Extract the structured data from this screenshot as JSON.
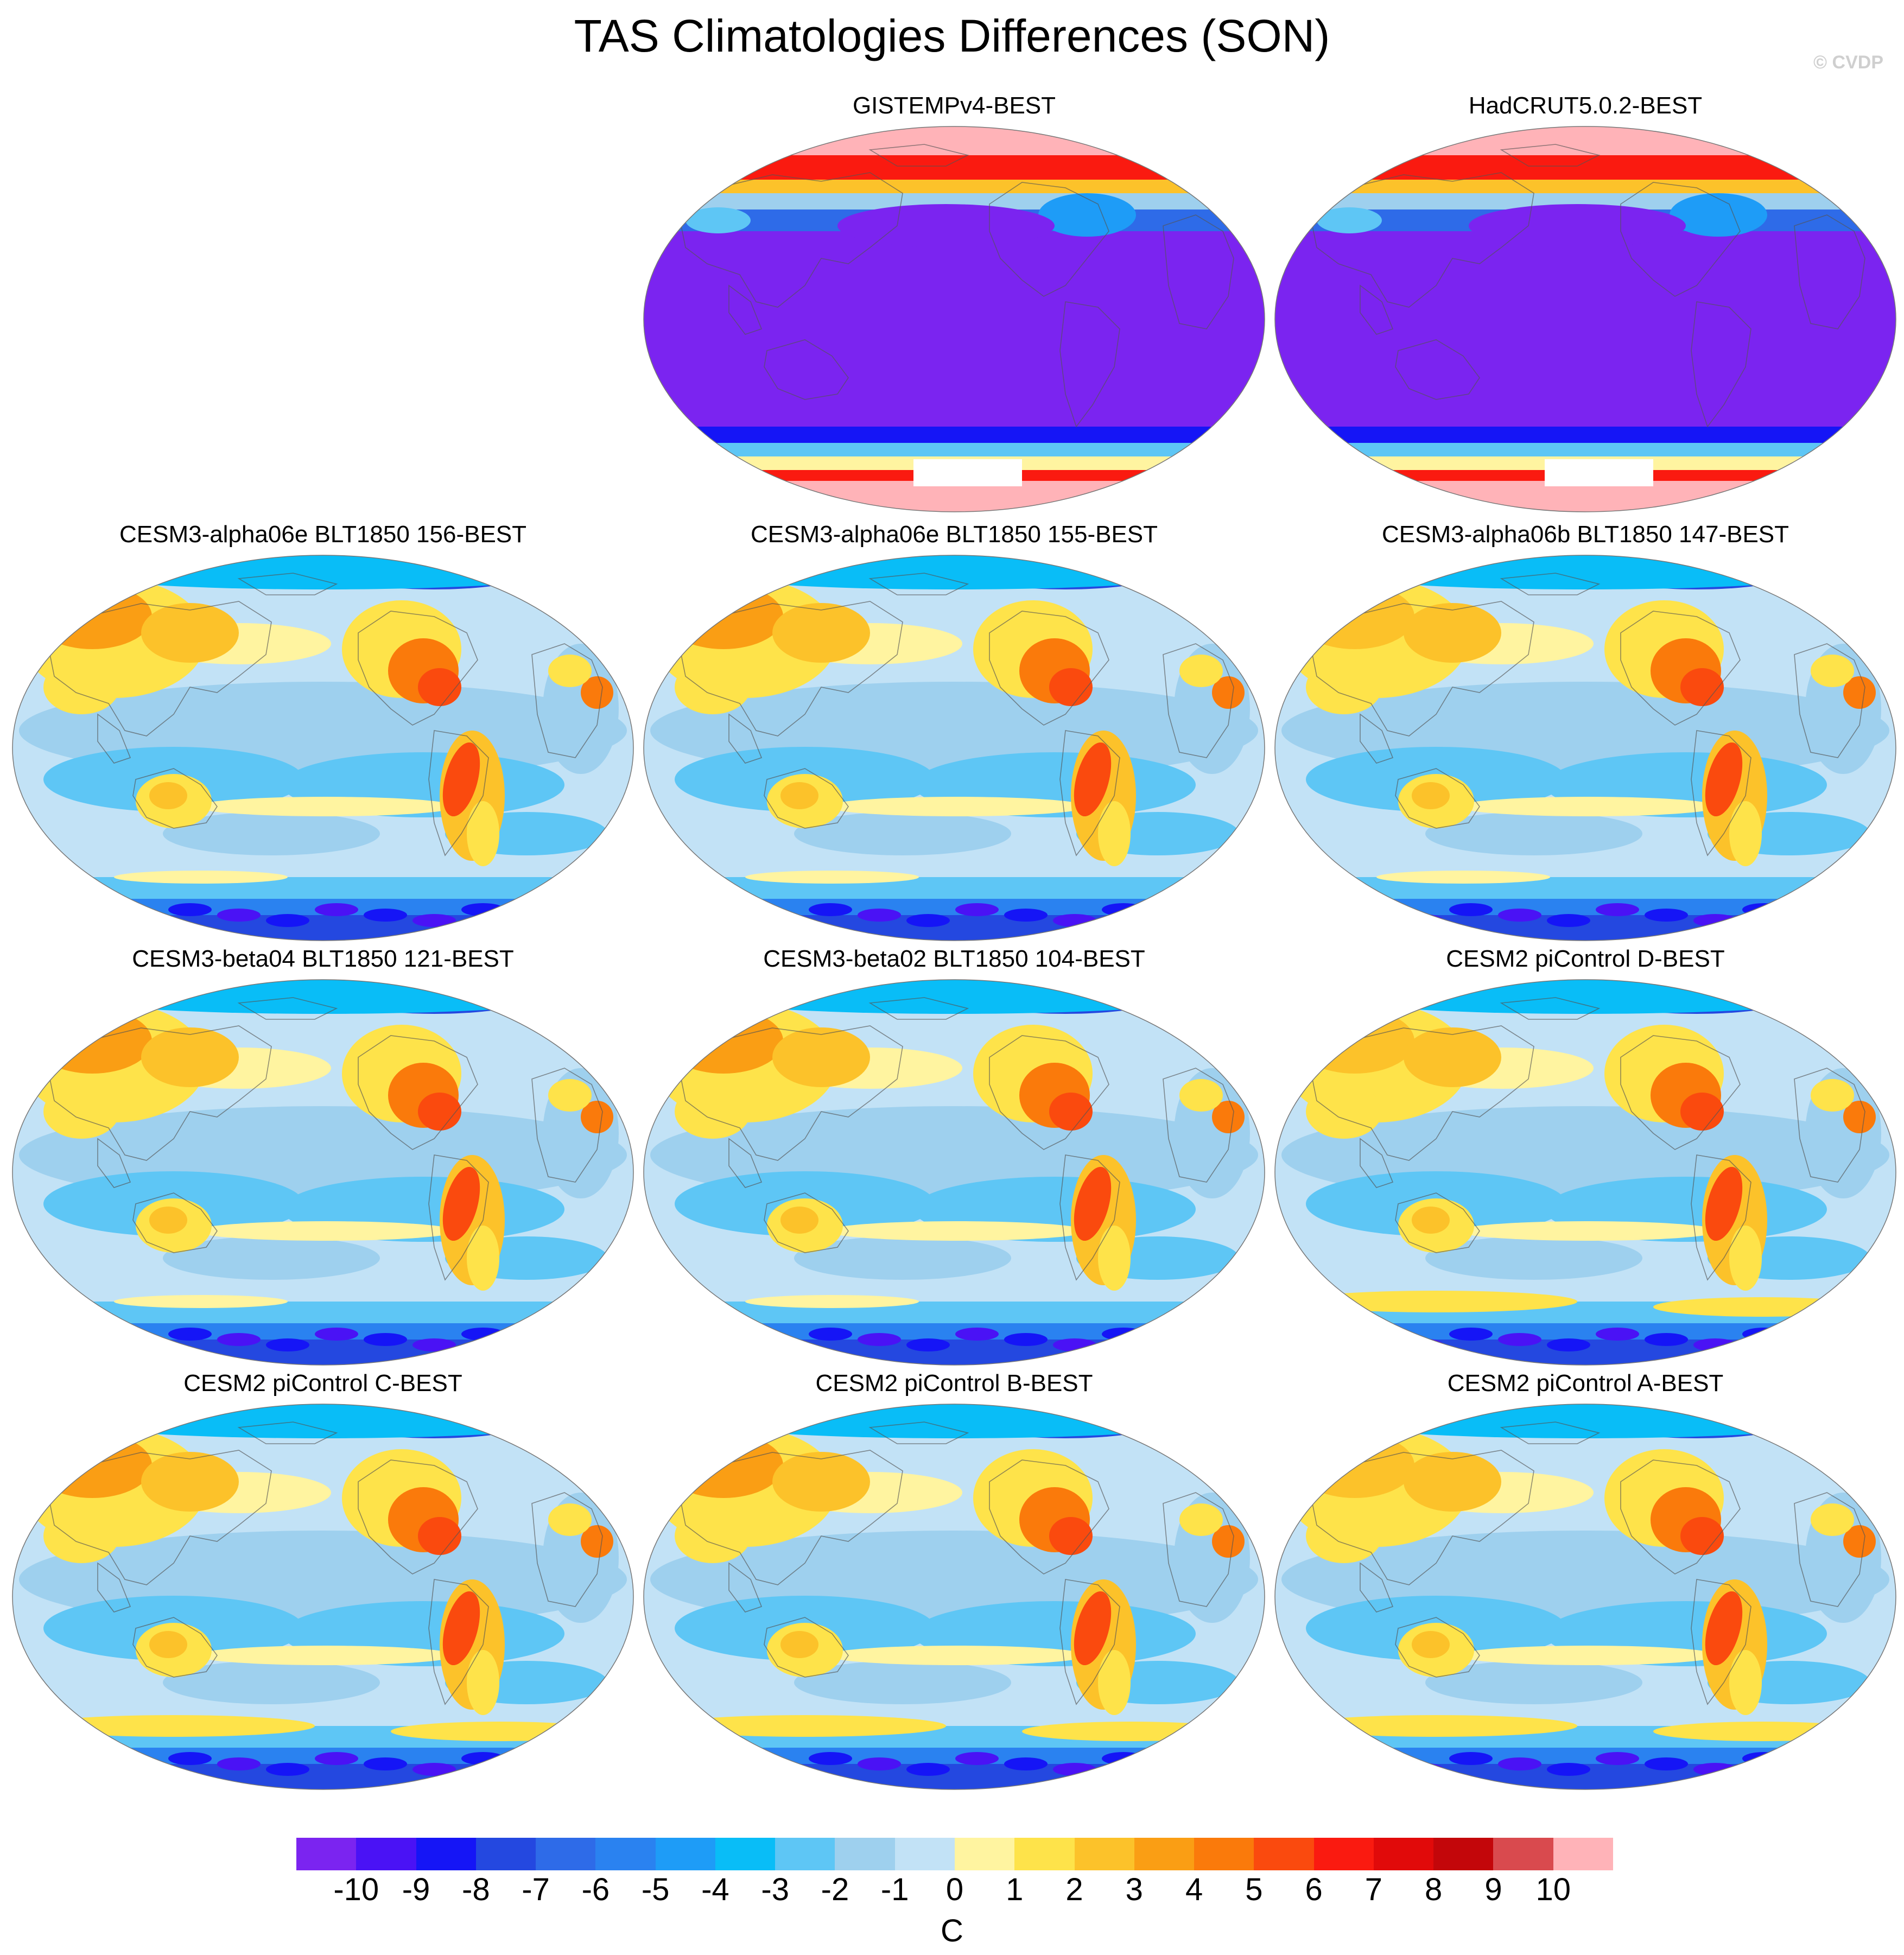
{
  "title": "TAS Climatologies Differences (SON)",
  "credit": "© CVDP",
  "colorbar": {
    "units": "C",
    "ticks": [
      "-10",
      "-9",
      "-8",
      "-7",
      "-6",
      "-5",
      "-4",
      "-3",
      "-2",
      "-1",
      "0",
      "1",
      "2",
      "3",
      "4",
      "5",
      "6",
      "7",
      "8",
      "9",
      "10"
    ],
    "colors": [
      "#7b24f0",
      "#4a12f5",
      "#1515f6",
      "#2448e0",
      "#2e6be8",
      "#2a82f0",
      "#1e9cf7",
      "#09bdf7",
      "#5ec6f5",
      "#9ed0ee",
      "#c2e2f6",
      "#fff4a0",
      "#fee34a",
      "#fcc22a",
      "#fa9e14",
      "#fa7a0b",
      "#fa4a0e",
      "#fa1a10",
      "#e10a0a",
      "#c3060a",
      "#d94a4e",
      "#ffb3b8"
    ]
  },
  "panels": [
    {
      "title": "GISTEMPv4-BEST",
      "row": 0,
      "col": 1,
      "style": "obs"
    },
    {
      "title": "HadCRUT5.0.2-BEST",
      "row": 0,
      "col": 2,
      "style": "obs"
    },
    {
      "title": "CESM3-alpha06e BLT1850 156-BEST",
      "row": 1,
      "col": 0,
      "style": "model"
    },
    {
      "title": "CESM3-alpha06e BLT1850 155-BEST",
      "row": 1,
      "col": 1,
      "style": "model"
    },
    {
      "title": "CESM3-alpha06b BLT1850 147-BEST",
      "row": 1,
      "col": 2,
      "style": "model"
    },
    {
      "title": "CESM3-beta04 BLT1850 121-BEST",
      "row": 2,
      "col": 0,
      "style": "model"
    },
    {
      "title": "CESM3-beta02 BLT1850 104-BEST",
      "row": 2,
      "col": 1,
      "style": "model"
    },
    {
      "title": "CESM2 piControl D-BEST",
      "row": 2,
      "col": 2,
      "style": "model"
    },
    {
      "title": "CESM2 piControl C-BEST",
      "row": 3,
      "col": 0,
      "style": "model"
    },
    {
      "title": "CESM2 piControl B-BEST",
      "row": 3,
      "col": 1,
      "style": "model"
    },
    {
      "title": "CESM2 piControl A-BEST",
      "row": 3,
      "col": 2,
      "style": "model"
    }
  ]
}
